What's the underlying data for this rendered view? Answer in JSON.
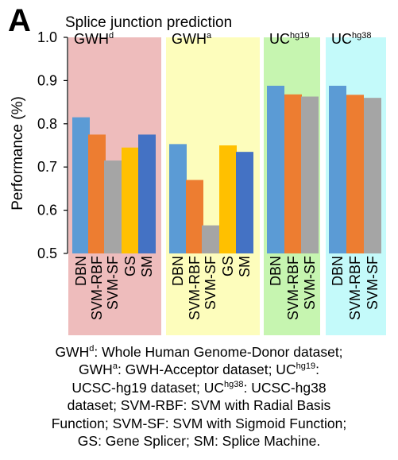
{
  "figure": {
    "panel_letter": "A",
    "caption_lines": [
      [
        "GWH",
        {
          "sup": "d"
        },
        ": Whole Human Genome-Donor dataset;"
      ],
      [
        "GWH",
        {
          "sup": "a"
        },
        ": GWH-Acceptor dataset; UC",
        {
          "sup": "hg19"
        },
        ":"
      ],
      [
        "UCSC-hg19 dataset; UC",
        {
          "sup": "hg38"
        },
        ": UCSC-hg38"
      ],
      [
        "dataset; SVM-RBF: SVM with Radial Basis"
      ],
      [
        "Function; SVM-SF: SVM with Sigmoid Function;"
      ],
      [
        "GS: Gene Splicer; SM: Splice Machine."
      ]
    ]
  },
  "chart_data": {
    "type": "bar",
    "title": "Splice junction prediction",
    "ylabel": "Performance (%)",
    "ylim": [
      0.5,
      1.0
    ],
    "yticks": [
      "0.5",
      "0.6",
      "0.7",
      "0.8",
      "0.9",
      "1.0"
    ],
    "grid": false,
    "colors": {
      "DBN": "#5b9bd5",
      "SVM-RBF": "#ed7d31",
      "SVM-SF": "#a5a5a5",
      "GS": "#ffc000",
      "SM": "#4472c4"
    },
    "groups": [
      {
        "label_base": "GWH",
        "label_sup": "d",
        "background": "#eebcbc",
        "categories": [
          "DBN",
          "SVM-RBF",
          "SVM-SF",
          "GS",
          "SM"
        ],
        "values": [
          0.815,
          0.775,
          0.715,
          0.745,
          0.775
        ]
      },
      {
        "label_base": "GWH",
        "label_sup": "a",
        "background": "#fdfdbc",
        "categories": [
          "DBN",
          "SVM-RBF",
          "SVM-SF",
          "GS",
          "SM"
        ],
        "values": [
          0.753,
          0.67,
          0.565,
          0.75,
          0.735
        ]
      },
      {
        "label_base": "UC",
        "label_sup": "hg19",
        "background": "#c6f5b0",
        "categories": [
          "DBN",
          "SVM-RBF",
          "SVM-SF"
        ],
        "values": [
          0.888,
          0.868,
          0.863
        ]
      },
      {
        "label_base": "UC",
        "label_sup": "hg38",
        "background": "#c4fafa",
        "categories": [
          "DBN",
          "SVM-RBF",
          "SVM-SF"
        ],
        "values": [
          0.888,
          0.867,
          0.86
        ]
      }
    ]
  }
}
